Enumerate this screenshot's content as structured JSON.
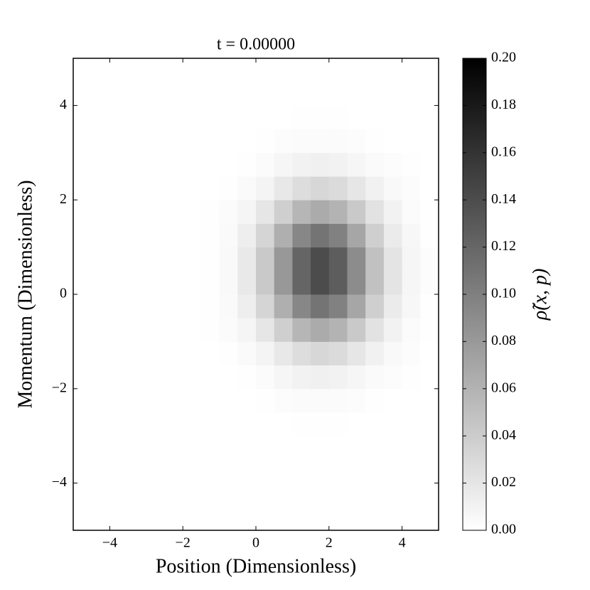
{
  "chart_data": {
    "type": "heatmap",
    "title": "t = 0.00000",
    "x_label": "Position (Dimensionless)",
    "y_label": "Momentum (Dimensionless)",
    "colorbar_label": "ρ̃(x, p)",
    "colormap": "Greys",
    "clim": [
      0,
      0.2
    ],
    "xlim": [
      -5,
      5
    ],
    "ylim": [
      -5,
      5
    ],
    "xticks": [
      {
        "value": -4,
        "label": "−4"
      },
      {
        "value": -2,
        "label": "−2"
      },
      0,
      2,
      4
    ],
    "yticks": [
      {
        "value": -4,
        "label": "−4"
      },
      {
        "value": -2,
        "label": "−2"
      },
      0,
      2,
      4
    ],
    "cticks": [
      {
        "value": 0,
        "label": "0.00"
      },
      {
        "value": 0.02,
        "label": "0.02"
      },
      {
        "value": 0.04,
        "label": "0.04"
      },
      {
        "value": 0.06,
        "label": "0.06"
      },
      {
        "value": 0.08,
        "label": "0.08"
      },
      {
        "value": 0.1,
        "label": "0.10"
      },
      {
        "value": 0.12,
        "label": "0.12"
      },
      {
        "value": 0.14,
        "label": "0.14"
      },
      {
        "value": 0.16,
        "label": "0.16"
      },
      {
        "value": 0.18,
        "label": "0.18"
      },
      {
        "value": 0.2,
        "label": "0.20"
      }
    ],
    "x": [
      -4.75,
      -4.25,
      -3.75,
      -3.25,
      -2.75,
      -2.25,
      -1.75,
      -1.25,
      -0.75,
      -0.25,
      0.25,
      0.75,
      1.25,
      1.75,
      2.25,
      2.75,
      3.25,
      3.75,
      4.25,
      4.75
    ],
    "y": [
      -4.75,
      -4.25,
      -3.75,
      -3.25,
      -2.75,
      -2.25,
      -1.75,
      -1.25,
      -0.75,
      -0.25,
      0.25,
      0.75,
      1.25,
      1.75,
      2.25,
      2.75,
      3.25,
      3.75,
      4.25,
      4.75
    ],
    "z": [
      [
        0,
        0,
        0,
        0,
        0,
        0,
        0,
        0,
        0,
        0,
        0,
        0,
        0,
        0,
        0,
        0,
        0,
        0,
        0,
        0
      ],
      [
        0,
        0,
        0,
        0,
        0,
        0,
        0,
        0,
        0,
        0,
        0,
        0,
        0,
        0,
        0,
        0,
        0,
        0,
        0,
        0
      ],
      [
        0,
        0,
        0,
        0,
        0,
        0,
        0,
        0,
        0,
        0,
        0,
        0,
        0,
        0,
        0,
        0,
        0,
        0,
        0,
        0
      ],
      [
        0,
        0,
        0,
        0,
        0,
        0,
        0,
        0,
        0,
        0,
        0,
        0,
        0,
        0,
        0,
        0,
        0,
        0,
        0,
        0
      ],
      [
        0,
        0,
        0,
        0,
        0,
        0,
        0,
        0,
        0,
        0,
        0,
        0,
        0.001,
        0.001,
        0.001,
        0,
        0,
        0,
        0,
        0
      ],
      [
        0,
        0,
        0,
        0,
        0,
        0,
        0,
        0,
        0,
        0,
        0.001,
        0.002,
        0.003,
        0.003,
        0.003,
        0.002,
        0.001,
        0,
        0,
        0
      ],
      [
        0,
        0,
        0,
        0,
        0,
        0,
        0,
        0,
        0,
        0.001,
        0.003,
        0.007,
        0.01,
        0.012,
        0.01,
        0.007,
        0.004,
        0.002,
        0.001,
        0
      ],
      [
        0,
        0,
        0,
        0,
        0,
        0,
        0,
        0,
        0.001,
        0.004,
        0.009,
        0.018,
        0.027,
        0.031,
        0.028,
        0.02,
        0.011,
        0.005,
        0.002,
        0
      ],
      [
        0,
        0,
        0,
        0,
        0,
        0,
        0,
        0.001,
        0.003,
        0.008,
        0.02,
        0.038,
        0.057,
        0.066,
        0.06,
        0.042,
        0.023,
        0.01,
        0.003,
        0.001
      ],
      [
        0,
        0,
        0,
        0,
        0,
        0,
        0,
        0.001,
        0.004,
        0.013,
        0.033,
        0.063,
        0.094,
        0.109,
        0.099,
        0.07,
        0.038,
        0.016,
        0.006,
        0.001
      ],
      [
        0,
        0,
        0,
        0,
        0,
        0,
        0,
        0.001,
        0.005,
        0.017,
        0.042,
        0.081,
        0.121,
        0.14,
        0.127,
        0.09,
        0.049,
        0.021,
        0.007,
        0.002
      ],
      [
        0,
        0,
        0,
        0,
        0,
        0,
        0,
        0.001,
        0.005,
        0.017,
        0.042,
        0.081,
        0.121,
        0.14,
        0.127,
        0.09,
        0.049,
        0.021,
        0.007,
        0.002
      ],
      [
        0,
        0,
        0,
        0,
        0,
        0,
        0,
        0.001,
        0.004,
        0.013,
        0.033,
        0.063,
        0.094,
        0.109,
        0.099,
        0.07,
        0.038,
        0.016,
        0.006,
        0.001
      ],
      [
        0,
        0,
        0,
        0,
        0,
        0,
        0,
        0.001,
        0.003,
        0.008,
        0.02,
        0.038,
        0.057,
        0.066,
        0.06,
        0.042,
        0.023,
        0.01,
        0.003,
        0.001
      ],
      [
        0,
        0,
        0,
        0,
        0,
        0,
        0,
        0,
        0.001,
        0.004,
        0.009,
        0.018,
        0.027,
        0.031,
        0.028,
        0.02,
        0.011,
        0.005,
        0.002,
        0
      ],
      [
        0,
        0,
        0,
        0,
        0,
        0,
        0,
        0,
        0,
        0.001,
        0.003,
        0.007,
        0.01,
        0.012,
        0.01,
        0.007,
        0.004,
        0.002,
        0.001,
        0
      ],
      [
        0,
        0,
        0,
        0,
        0,
        0,
        0,
        0,
        0,
        0,
        0.001,
        0.002,
        0.003,
        0.003,
        0.003,
        0.002,
        0.001,
        0,
        0,
        0
      ],
      [
        0,
        0,
        0,
        0,
        0,
        0,
        0,
        0,
        0,
        0,
        0,
        0,
        0.001,
        0.001,
        0.001,
        0,
        0,
        0,
        0,
        0
      ],
      [
        0,
        0,
        0,
        0,
        0,
        0,
        0,
        0,
        0,
        0,
        0,
        0,
        0,
        0,
        0,
        0,
        0,
        0,
        0,
        0
      ],
      [
        0,
        0,
        0,
        0,
        0,
        0,
        0,
        0,
        0,
        0,
        0,
        0,
        0,
        0,
        0,
        0,
        0,
        0,
        0,
        0
      ]
    ]
  }
}
